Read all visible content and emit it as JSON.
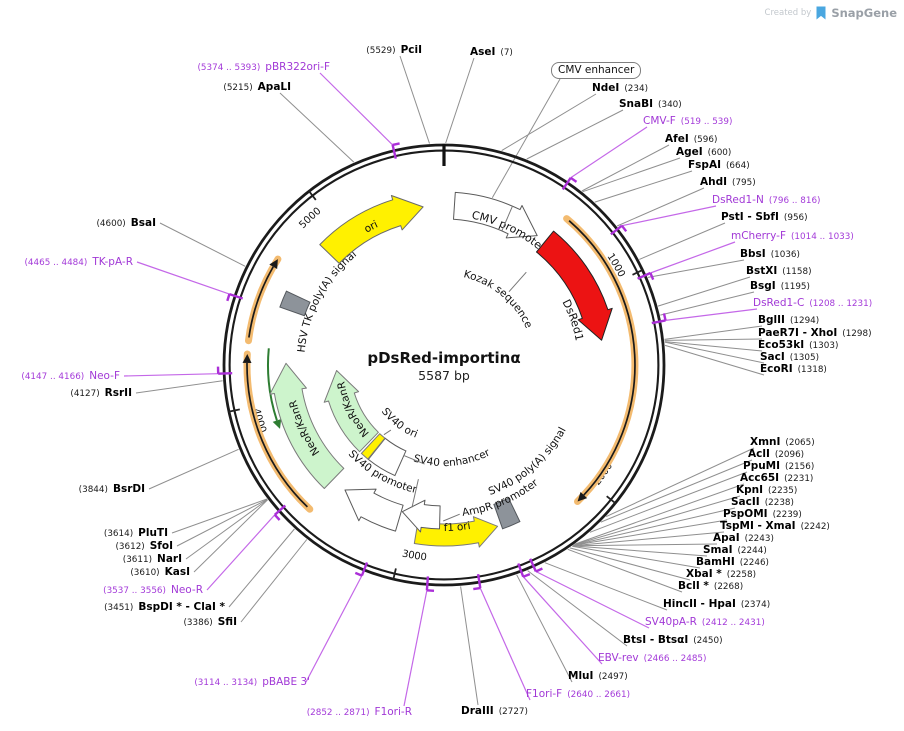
{
  "watermark": {
    "created_by": "Created by",
    "brand": "SnapGene"
  },
  "plasmid": {
    "name": "pDsRed-importinα",
    "length_label": "5587 bp",
    "length_bp": 5587
  },
  "ticks": [
    {
      "bp": 1000,
      "label": "1000"
    },
    {
      "bp": 2000,
      "label": "2000"
    },
    {
      "bp": 3000,
      "label": "3000"
    },
    {
      "bp": 4000,
      "label": "4000"
    },
    {
      "bp": 5000,
      "label": "5000"
    }
  ],
  "enhancer_callout": {
    "label": "CMV enhancer",
    "target_bp": 250
  },
  "features": [
    {
      "id": "cmv_promoter",
      "label": "CMV promoter",
      "start": 58,
      "end": 555,
      "shape": "arrow",
      "fill": "#ffffff",
      "stroke": "#5a5a5a"
    },
    {
      "id": "kozak",
      "label": "Kozak sequence",
      "start": 613,
      "end": 678,
      "shape": "label",
      "fill": "none",
      "stroke": "#555555"
    },
    {
      "id": "dsred1",
      "label": "DsRed1",
      "start": 610,
      "end": 1258,
      "shape": "arrow",
      "fill": "#ec1313",
      "stroke": "#222222"
    },
    {
      "id": "sv40_polya",
      "label": "SV40 poly(A) signal",
      "start": 2392,
      "end": 2488,
      "shape": "box",
      "fill": "#8d939a",
      "stroke": "#54585d"
    },
    {
      "id": "f1_ori",
      "label": "f1 ori",
      "start": 2940,
      "end": 2508,
      "shape": "arrow",
      "fill": "#fff100",
      "stroke": "#7a7a7a"
    },
    {
      "id": "ampr_promoter",
      "label": "AmpR promoter",
      "start": 2818,
      "end": 3040,
      "shape": "arrow",
      "fill": "#ffffff",
      "stroke": "#5a5a5a"
    },
    {
      "id": "sv40_promoter",
      "label": "SV40 promoter",
      "start": 3046,
      "end": 3389,
      "shape": "arrow",
      "fill": "#ffffff",
      "stroke": "#5a5a5a"
    },
    {
      "id": "sv40_enhancer",
      "label": "SV40 enhancer",
      "start": 3165,
      "end": 3395,
      "shape": "box",
      "fill": "#ffffff",
      "stroke": "#5a5a5a"
    },
    {
      "id": "sv40_ori",
      "label": "SV40 ori",
      "start": 3398,
      "end": 3462,
      "shape": "box",
      "fill": "#fff100",
      "stroke": "#7a7a7a"
    },
    {
      "id": "neor_kanr_outer",
      "label": "NeoR/KanR",
      "start": 3478,
      "end": 4200,
      "shape": "arrow",
      "fill": "#cdf4cc",
      "stroke": "#7a7a7a"
    },
    {
      "id": "neor_kanr_inner",
      "label": "NeoR/KanR",
      "start": 3480,
      "end": 4145,
      "shape": "arrow",
      "fill": "#cdf4cc",
      "stroke": "#7a7a7a"
    },
    {
      "id": "hsv_tk_polya",
      "label": "HSV TK poly(A) signal",
      "start": 4492,
      "end": 4580,
      "shape": "box",
      "fill": "#8d939a",
      "stroke": "#54585d"
    },
    {
      "id": "ori",
      "label": "ori",
      "start": 4875,
      "end": 5470,
      "shape": "arrow",
      "fill": "#fff100",
      "stroke": "#6a6a6a"
    }
  ],
  "orfs": [
    {
      "start": 620,
      "end": 2105,
      "strand": "+"
    },
    {
      "start": 3460,
      "end": 4240,
      "strand": "+"
    },
    {
      "start": 4300,
      "end": 4695,
      "strand": "+"
    },
    {
      "start": 3860,
      "end": 4290,
      "strand": "-"
    }
  ],
  "site_labels": [
    {
      "name": "AseI",
      "pos": "(7)",
      "bp": 7,
      "kind": "enzyme"
    },
    {
      "name": "NdeI",
      "pos": "(234)",
      "bp": 234,
      "kind": "enzyme"
    },
    {
      "name": "SnaBI",
      "pos": "(340)",
      "bp": 340,
      "kind": "enzyme"
    },
    {
      "name": "CMV-F",
      "pos": "(519 .. 539)",
      "bp": 529,
      "kind": "primer",
      "dir": 1
    },
    {
      "name": "AfeI",
      "pos": "(596)",
      "bp": 596,
      "kind": "enzyme"
    },
    {
      "name": "AgeI",
      "pos": "(600)",
      "bp": 600,
      "kind": "enzyme"
    },
    {
      "name": "FspAI",
      "pos": "(664)",
      "bp": 664,
      "kind": "enzyme"
    },
    {
      "name": "AhdI",
      "pos": "(795)",
      "bp": 795,
      "kind": "enzyme"
    },
    {
      "name": "DsRed1-N",
      "pos": "(796 .. 816)",
      "bp": 806,
      "kind": "primer",
      "dir": 1
    },
    {
      "name": "PstI - SbfI",
      "pos": "(956)",
      "bp": 956,
      "kind": "enzyme"
    },
    {
      "name": "mCherry-F",
      "pos": "(1014 .. 1033)",
      "bp": 1024,
      "kind": "primer",
      "dir": 1
    },
    {
      "name": "BbsI",
      "pos": "(1036)",
      "bp": 1036,
      "kind": "enzyme"
    },
    {
      "name": "BstXI",
      "pos": "(1158)",
      "bp": 1158,
      "kind": "enzyme"
    },
    {
      "name": "BsgI",
      "pos": "(1195)",
      "bp": 1195,
      "kind": "enzyme"
    },
    {
      "name": "DsRed1-C",
      "pos": "(1208 .. 1231)",
      "bp": 1220,
      "kind": "primer",
      "dir": -1
    },
    {
      "name": "BglII",
      "pos": "(1294)",
      "bp": 1294,
      "kind": "enzyme"
    },
    {
      "name": "PaeR7I - XhoI",
      "pos": "(1298)",
      "bp": 1298,
      "kind": "enzyme"
    },
    {
      "name": "Eco53kI",
      "pos": "(1303)",
      "bp": 1303,
      "kind": "enzyme"
    },
    {
      "name": "SacI",
      "pos": "(1305)",
      "bp": 1305,
      "kind": "enzyme"
    },
    {
      "name": "EcoRI",
      "pos": "(1318)",
      "bp": 1318,
      "kind": "enzyme"
    },
    {
      "name": "XmnI",
      "pos": "(2065)",
      "bp": 2065,
      "kind": "enzyme"
    },
    {
      "name": "AclI",
      "pos": "(2096)",
      "bp": 2096,
      "kind": "enzyme"
    },
    {
      "name": "PpuMI",
      "pos": "(2156)",
      "bp": 2156,
      "kind": "enzyme"
    },
    {
      "name": "Acc65I",
      "pos": "(2231)",
      "bp": 2231,
      "kind": "enzyme"
    },
    {
      "name": "KpnI",
      "pos": "(2235)",
      "bp": 2235,
      "kind": "enzyme"
    },
    {
      "name": "SacII",
      "pos": "(2238)",
      "bp": 2238,
      "kind": "enzyme"
    },
    {
      "name": "PspOMI",
      "pos": "(2239)",
      "bp": 2239,
      "kind": "enzyme"
    },
    {
      "name": "TspMI - XmaI",
      "pos": "(2242)",
      "bp": 2242,
      "kind": "enzyme"
    },
    {
      "name": "ApaI",
      "pos": "(2243)",
      "bp": 2243,
      "kind": "enzyme"
    },
    {
      "name": "SmaI",
      "pos": "(2244)",
      "bp": 2244,
      "kind": "enzyme"
    },
    {
      "name": "BamHI",
      "pos": "(2246)",
      "bp": 2246,
      "kind": "enzyme"
    },
    {
      "name": "XbaI *",
      "pos": "(2258)",
      "bp": 2258,
      "kind": "enzyme"
    },
    {
      "name": "BclI *",
      "pos": "(2268)",
      "bp": 2268,
      "kind": "enzyme"
    },
    {
      "name": "HincII - HpaI",
      "pos": "(2374)",
      "bp": 2374,
      "kind": "enzyme"
    },
    {
      "name": "SV40pA-R",
      "pos": "(2412 .. 2431)",
      "bp": 2421,
      "kind": "primer",
      "dir": -1
    },
    {
      "name": "BtsI - BtsαI",
      "pos": "(2450)",
      "bp": 2450,
      "kind": "enzyme"
    },
    {
      "name": "EBV-rev",
      "pos": "(2466 .. 2485)",
      "bp": 2475,
      "kind": "primer",
      "dir": -1
    },
    {
      "name": "MluI",
      "pos": "(2497)",
      "bp": 2497,
      "kind": "enzyme"
    },
    {
      "name": "F1ori-F",
      "pos": "(2640 .. 2661)",
      "bp": 2650,
      "kind": "primer",
      "dir": 1
    },
    {
      "name": "DraIII",
      "pos": "(2727)",
      "bp": 2727,
      "kind": "enzyme"
    },
    {
      "name": "F1ori-R",
      "pos": "(2852 .. 2871)",
      "bp": 2861,
      "kind": "primer",
      "dir": -1
    },
    {
      "name": "pBABE 3'",
      "pos": "(3114 .. 3134)",
      "bp": 3124,
      "kind": "primer",
      "dir": 1
    },
    {
      "name": "SfiI",
      "pos": "(3386)",
      "bp": 3386,
      "kind": "enzyme"
    },
    {
      "name": "BspDI * - ClaI *",
      "pos": "(3451)",
      "bp": 3451,
      "kind": "enzyme"
    },
    {
      "name": "Neo-R",
      "pos": "(3537 .. 3556)",
      "bp": 3546,
      "kind": "primer",
      "dir": -1
    },
    {
      "name": "KasI",
      "pos": "(3610)",
      "bp": 3610,
      "kind": "enzyme"
    },
    {
      "name": "NarI",
      "pos": "(3611)",
      "bp": 3611,
      "kind": "enzyme"
    },
    {
      "name": "SfoI",
      "pos": "(3612)",
      "bp": 3612,
      "kind": "enzyme"
    },
    {
      "name": "PluTI",
      "pos": "(3614)",
      "bp": 3614,
      "kind": "enzyme"
    },
    {
      "name": "BsrDI",
      "pos": "(3844)",
      "bp": 3844,
      "kind": "enzyme"
    },
    {
      "name": "RsrII",
      "pos": "(4127)",
      "bp": 4127,
      "kind": "enzyme"
    },
    {
      "name": "Neo-F",
      "pos": "(4147 .. 4166)",
      "bp": 4156,
      "kind": "primer",
      "dir": 1
    },
    {
      "name": "TK-pA-R",
      "pos": "(4465 .. 4484)",
      "bp": 4474,
      "kind": "primer",
      "dir": -1
    },
    {
      "name": "BsaI",
      "pos": "(4600)",
      "bp": 4600,
      "kind": "enzyme"
    },
    {
      "name": "ApaLI",
      "pos": "(5215)",
      "bp": 5215,
      "kind": "enzyme"
    },
    {
      "name": "pBR322ori-F",
      "pos": "(5374 .. 5393)",
      "bp": 5383,
      "kind": "primer",
      "dir": 1
    },
    {
      "name": "PciI",
      "pos": "(5529)",
      "bp": 5529,
      "kind": "enzyme"
    }
  ],
  "colors": {
    "ring": "#1b1b1b",
    "enzyme_line": "#8f8f8f",
    "primer_line": "#c468e8",
    "primer_text": "#a138d6",
    "primer_flag": "#ab2fd8",
    "orf_band": "#f3bb70",
    "orf_arrow": "#1a1a1a",
    "orf_reverse": "#2e7d32",
    "red": "#ec1313",
    "yellow": "#fff100",
    "green": "#cdf4cc",
    "gray_box": "#8d939a"
  }
}
